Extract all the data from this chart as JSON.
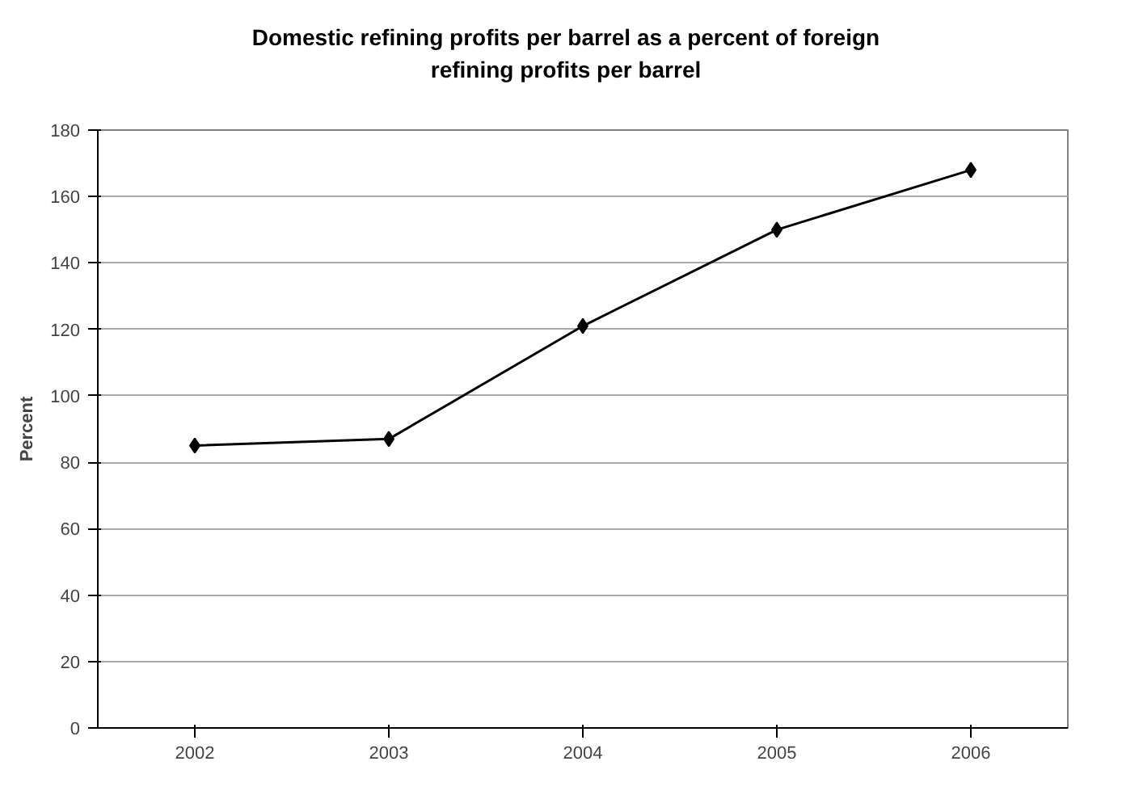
{
  "chart_data": {
    "type": "line",
    "title": "Domestic refining profits per barrel as a percent of foreign refining profits per barrel",
    "ylabel": "Percent",
    "categories": [
      "2002",
      "2003",
      "2004",
      "2005",
      "2006"
    ],
    "series": [
      {
        "color": "#000000",
        "values": [
          85,
          87,
          121,
          150,
          168
        ]
      }
    ],
    "ylim": [
      0,
      180
    ],
    "yticks": [
      0,
      20,
      40,
      60,
      80,
      100,
      120,
      140,
      160,
      180
    ],
    "grid": "y",
    "marker": "diamond",
    "line_style": "solid"
  }
}
